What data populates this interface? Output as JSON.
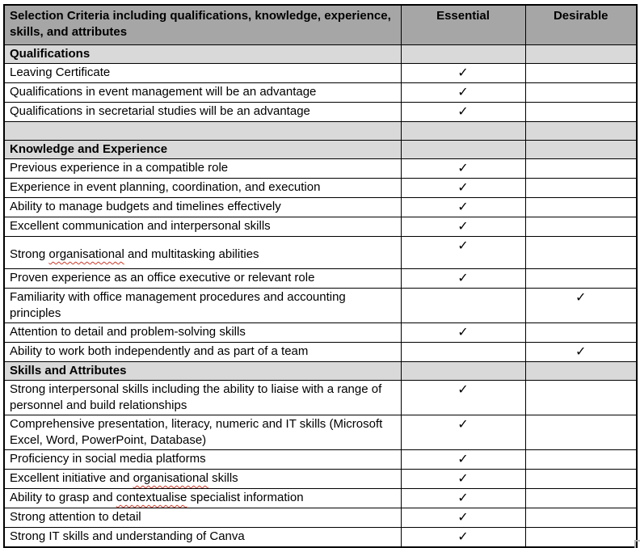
{
  "document": {
    "header": {
      "criteria_label": "Selection Criteria including qualifications, knowledge, experience, skills, and attributes",
      "essential_label": "Essential",
      "desirable_label": "Desirable"
    },
    "check_glyph": "✓",
    "colors": {
      "header_bg": "#a6a6a6",
      "section_bg": "#d9d9d9",
      "border": "#000000",
      "squiggle_red": "#cc3a2a"
    },
    "rows": [
      {
        "type": "section",
        "text": "Qualifications"
      },
      {
        "type": "item",
        "text": "Leaving Certificate",
        "essential": true,
        "desirable": false
      },
      {
        "type": "item",
        "text": "Qualifications in event management will be an advantage",
        "essential": true,
        "desirable": false
      },
      {
        "type": "item",
        "text": "Qualifications in secretarial studies will be an advantage",
        "essential": true,
        "desirable": false
      },
      {
        "type": "spacer",
        "text": ""
      },
      {
        "type": "section",
        "text": "Knowledge and Experience"
      },
      {
        "type": "item",
        "text": "Previous experience in a compatible role",
        "essential": true,
        "desirable": false
      },
      {
        "type": "item",
        "text": "Experience in event planning, coordination, and execution",
        "essential": true,
        "desirable": false
      },
      {
        "type": "item",
        "text": "Ability to manage budgets and timelines effectively",
        "essential": true,
        "desirable": false
      },
      {
        "type": "item",
        "text": "Excellent communication and interpersonal skills",
        "essential": true,
        "desirable": false
      },
      {
        "type": "item",
        "text": "Strong organisational and multitasking abilities",
        "essential": true,
        "desirable": false,
        "tall": true,
        "misspelled": [
          "organisational"
        ]
      },
      {
        "type": "item",
        "text": "Proven experience as an office executive or relevant role",
        "essential": true,
        "desirable": false
      },
      {
        "type": "item",
        "text": "Familiarity with office management procedures and accounting principles",
        "essential": false,
        "desirable": true
      },
      {
        "type": "item",
        "text": "Attention to detail and problem-solving skills",
        "essential": true,
        "desirable": false
      },
      {
        "type": "item",
        "text": "Ability to work both independently and as part of a team",
        "essential": false,
        "desirable": true
      },
      {
        "type": "section",
        "text": "Skills and Attributes"
      },
      {
        "type": "item",
        "text": "Strong interpersonal skills including the ability to liaise with a range of personnel and build relationships",
        "essential": true,
        "desirable": false
      },
      {
        "type": "item",
        "text": "Comprehensive presentation, literacy, numeric and IT skills (Microsoft Excel, Word, PowerPoint, Database)",
        "essential": true,
        "desirable": false
      },
      {
        "type": "item",
        "text": "Proficiency in social media platforms",
        "essential": true,
        "desirable": false
      },
      {
        "type": "item",
        "text": "Excellent initiative and organisational skills",
        "essential": true,
        "desirable": false,
        "misspelled": [
          "organisational"
        ]
      },
      {
        "type": "item",
        "text": "Ability to grasp and contextualise specialist information",
        "essential": true,
        "desirable": false,
        "misspelled": [
          "contextualise"
        ]
      },
      {
        "type": "item",
        "text": "Strong attention to detail",
        "essential": true,
        "desirable": false
      },
      {
        "type": "item",
        "text": "Strong IT skills and understanding of Canva",
        "essential": true,
        "desirable": false
      }
    ]
  }
}
